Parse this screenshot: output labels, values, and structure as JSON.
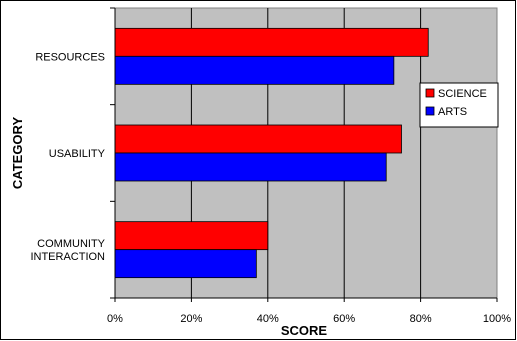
{
  "chart_data": {
    "type": "bar",
    "orientation": "horizontal",
    "title": "",
    "xlabel": "SCORE",
    "ylabel": "CATEGORY",
    "categories": [
      [
        "RESOURCES"
      ],
      [
        "USABILITY"
      ],
      [
        "COMMUNITY",
        "INTERACTION"
      ]
    ],
    "series": [
      {
        "name": "SCIENCE",
        "color": "#ff0000",
        "values": [
          82,
          75,
          40
        ]
      },
      {
        "name": "ARTS",
        "color": "#0000ff",
        "values": [
          73,
          71,
          37
        ]
      }
    ],
    "xlim": [
      0,
      100
    ],
    "x_ticks": [
      "0%",
      "20%",
      "40%",
      "60%",
      "80%",
      "100%"
    ],
    "x_tick_values": [
      0,
      20,
      40,
      60,
      80,
      100
    ],
    "grid": true,
    "plot_background": "#c0c0c0",
    "legend_position": "right"
  }
}
